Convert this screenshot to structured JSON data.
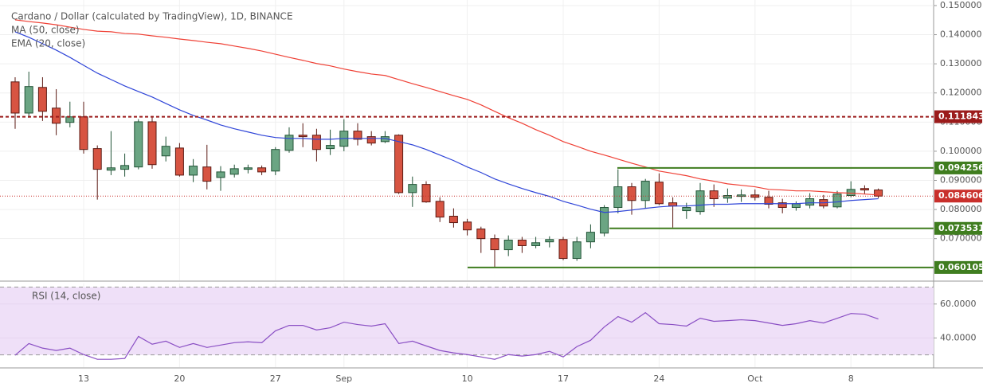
{
  "chart_data": [
    {
      "type": "candlestick",
      "title": "Cardano / Dollar (calculated by TradingView), 1D, BINANCE",
      "categories": [
        null,
        null,
        null,
        null,
        null,
        "13",
        null,
        null,
        null,
        null,
        null,
        null,
        "20",
        null,
        null,
        null,
        null,
        null,
        null,
        "27",
        null,
        null,
        null,
        null,
        "Sep",
        null,
        null,
        null,
        null,
        null,
        null,
        null,
        null,
        "10",
        null,
        null,
        null,
        null,
        null,
        null,
        "17",
        null,
        null,
        null,
        null,
        null,
        null,
        "24",
        null,
        null,
        null,
        null,
        null,
        null,
        "Oct",
        null,
        null,
        null,
        null,
        null,
        null,
        "8",
        null,
        null
      ],
      "open": [
        0.1238,
        0.1131,
        0.1219,
        0.1148,
        0.1099,
        0.1118,
        0.1009,
        0.0935,
        0.0938,
        0.0946,
        0.1101,
        0.0984,
        0.1011,
        0.0918,
        0.0946,
        0.091,
        0.0921,
        0.0938,
        0.0943,
        0.0932,
        0.1003,
        0.1055,
        0.1055,
        0.1009,
        0.1017,
        0.1069,
        0.105,
        0.1033,
        0.1055,
        0.0858,
        0.0886,
        0.0828,
        0.0777,
        0.0757,
        0.0733,
        0.07,
        0.0662,
        0.0695,
        0.0676,
        0.0689,
        0.0697,
        0.0632,
        0.0689,
        0.0719,
        0.0807,
        0.0878,
        0.0831,
        0.0894,
        0.0823,
        0.0796,
        0.0793,
        0.0864,
        0.0839,
        0.0845,
        0.085,
        0.0842,
        0.0823,
        0.0807,
        0.0815,
        0.0834,
        0.0809,
        0.0848,
        0.0872,
        0.0867
      ],
      "high": [
        0.1254,
        0.1273,
        0.1254,
        0.1213,
        0.117,
        0.117,
        0.102,
        0.1069,
        0.0992,
        0.111,
        0.1121,
        0.105,
        0.1028,
        0.0973,
        0.1022,
        0.0949,
        0.0954,
        0.0954,
        0.0951,
        0.1014,
        0.1082,
        0.1096,
        0.1077,
        0.1074,
        0.111,
        0.1096,
        0.1069,
        0.1069,
        0.1058,
        0.0913,
        0.0897,
        0.0842,
        0.0804,
        0.0768,
        0.0741,
        0.0714,
        0.0711,
        0.0706,
        0.0706,
        0.0708,
        0.0706,
        0.0706,
        0.0749,
        0.0815,
        0.0938,
        0.0891,
        0.0905,
        0.0924,
        0.0842,
        0.0823,
        0.0891,
        0.0886,
        0.0872,
        0.0869,
        0.0869,
        0.0864,
        0.0837,
        0.0828,
        0.0856,
        0.085,
        0.0864,
        0.0897,
        0.0883,
        0.0872
      ],
      "low": [
        0.1077,
        0.1115,
        0.1104,
        0.1055,
        0.1082,
        0.0992,
        0.0834,
        0.0918,
        0.0913,
        0.0938,
        0.094,
        0.0965,
        0.0913,
        0.0894,
        0.0869,
        0.0864,
        0.091,
        0.0924,
        0.0918,
        0.0918,
        0.0995,
        0.1014,
        0.0965,
        0.0987,
        0.1,
        0.102,
        0.102,
        0.1028,
        0.0853,
        0.0809,
        0.0823,
        0.0757,
        0.0738,
        0.0711,
        0.0651,
        0.0601,
        0.064,
        0.0651,
        0.0667,
        0.067,
        0.0626,
        0.0624,
        0.0667,
        0.0708,
        0.0787,
        0.0782,
        0.0804,
        0.0815,
        0.0738,
        0.0768,
        0.0782,
        0.0809,
        0.0823,
        0.0826,
        0.0831,
        0.0804,
        0.0787,
        0.0796,
        0.0804,
        0.0804,
        0.0804,
        0.0842,
        0.0853,
        0.0839
      ],
      "close": [
        0.1131,
        0.1222,
        0.1137,
        0.1096,
        0.1118,
        0.1006,
        0.0938,
        0.0943,
        0.0951,
        0.1101,
        0.0954,
        0.1017,
        0.0918,
        0.0949,
        0.0897,
        0.0929,
        0.094,
        0.0943,
        0.0929,
        0.1006,
        0.1055,
        0.105,
        0.1006,
        0.102,
        0.1069,
        0.1041,
        0.1028,
        0.105,
        0.0858,
        0.0886,
        0.0826,
        0.0774,
        0.0755,
        0.073,
        0.07,
        0.0662,
        0.0695,
        0.0676,
        0.0686,
        0.0697,
        0.0632,
        0.0689,
        0.0722,
        0.0807,
        0.0878,
        0.0831,
        0.0897,
        0.082,
        0.0812,
        0.0807,
        0.0864,
        0.0837,
        0.0848,
        0.085,
        0.0842,
        0.0818,
        0.0807,
        0.082,
        0.0837,
        0.0812,
        0.0853,
        0.0869,
        0.0867,
        0.0846
      ],
      "up_color": "#6ba583",
      "up_border": "#225437",
      "down_color": "#d75442",
      "down_border": "#5b1a13",
      "series": [
        {
          "name": "MA (50, close)",
          "color": "#ef4035",
          "values": [
            0.1451,
            0.1445,
            0.144,
            0.1434,
            0.1426,
            0.1418,
            0.1412,
            0.141,
            0.1404,
            0.1402,
            0.1396,
            0.1391,
            0.1385,
            0.138,
            0.1374,
            0.1369,
            0.1361,
            0.1353,
            0.1344,
            0.1333,
            0.1322,
            0.1312,
            0.1301,
            0.1293,
            0.1282,
            0.1273,
            0.1265,
            0.126,
            0.1246,
            0.1232,
            0.1219,
            0.1205,
            0.1191,
            0.1178,
            0.1159,
            0.1137,
            0.1115,
            0.1096,
            0.1074,
            0.1055,
            0.1033,
            0.1017,
            0.1,
            0.0987,
            0.0973,
            0.0959,
            0.0946,
            0.0932,
            0.0924,
            0.0916,
            0.0905,
            0.0897,
            0.0888,
            0.0883,
            0.0878,
            0.0869,
            0.0867,
            0.0864,
            0.0864,
            0.0861,
            0.0858,
            0.0856,
            0.0853,
            0.085
          ]
        },
        {
          "name": "EMA (20, close)",
          "color": "#2f45d8",
          "values": [
            0.141,
            0.1391,
            0.1369,
            0.1347,
            0.1322,
            0.1295,
            0.1268,
            0.1246,
            0.1224,
            0.1205,
            0.1186,
            0.1164,
            0.1142,
            0.1123,
            0.1107,
            0.109,
            0.1077,
            0.1066,
            0.1055,
            0.1047,
            0.1044,
            0.1044,
            0.1041,
            0.1041,
            0.1044,
            0.1044,
            0.1044,
            0.1044,
            0.1033,
            0.1022,
            0.1006,
            0.0987,
            0.0968,
            0.0946,
            0.0927,
            0.0905,
            0.0888,
            0.0872,
            0.0858,
            0.0845,
            0.0828,
            0.0815,
            0.0801,
            0.079,
            0.0793,
            0.0798,
            0.0804,
            0.0809,
            0.0812,
            0.0812,
            0.0815,
            0.0818,
            0.0818,
            0.082,
            0.082,
            0.082,
            0.082,
            0.082,
            0.0823,
            0.0823,
            0.0826,
            0.0831,
            0.0834,
            0.0837
          ]
        }
      ],
      "ylim": [
        0.0557,
        0.1519
      ],
      "yticks": [
        {
          "value": 0.07,
          "label": "0.070000"
        },
        {
          "value": 0.08,
          "label": "0.080000"
        },
        {
          "value": 0.09,
          "label": "0.090000"
        },
        {
          "value": 0.1,
          "label": "0.100000"
        },
        {
          "value": 0.11,
          "label": "0.110000"
        },
        {
          "value": 0.12,
          "label": "0.120000"
        },
        {
          "value": 0.13,
          "label": "0.130000"
        },
        {
          "value": 0.14,
          "label": "0.140000"
        },
        {
          "value": 0.15,
          "label": "0.150000"
        }
      ],
      "grid": true,
      "levels": [
        {
          "value": 0.111843,
          "color": "#9b1b1b",
          "style": "dashed"
        },
        {
          "value": 0.094256,
          "color": "#3f7d1f",
          "style": "solid"
        },
        {
          "value": 0.084606,
          "color": "#c9302c",
          "style": "dotted"
        },
        {
          "value": 0.073531,
          "color": "#3f7d1f",
          "style": "solid"
        },
        {
          "value": 0.060105,
          "color": "#3f7d1f",
          "style": "solid"
        }
      ]
    },
    {
      "type": "line",
      "series": [
        {
          "name": "RSI (14, close)",
          "color": "#8a4fc4",
          "values": [
            29.8,
            36.7,
            34.0,
            32.6,
            34.0,
            30.2,
            27.4,
            27.4,
            27.9,
            40.9,
            36.3,
            38.1,
            34.4,
            36.7,
            34.4,
            35.8,
            37.2,
            37.7,
            37.2,
            44.2,
            47.4,
            47.4,
            44.7,
            46.0,
            49.3,
            47.9,
            47.0,
            48.4,
            36.7,
            38.1,
            35.3,
            32.6,
            31.2,
            30.2,
            28.8,
            27.4,
            30.2,
            29.3,
            30.2,
            32.1,
            28.8,
            34.9,
            38.6,
            46.5,
            52.6,
            49.3,
            54.9,
            48.4,
            47.9,
            47.0,
            51.6,
            49.8,
            50.2,
            50.7,
            50.2,
            48.8,
            47.4,
            48.4,
            50.2,
            48.8,
            51.6,
            54.4,
            54.0,
            51.2
          ]
        }
      ],
      "ylim": [
        22.8,
        72.1
      ],
      "yticks": [
        {
          "value": 40,
          "label": "40.0000"
        },
        {
          "value": 60,
          "label": "60.0000"
        }
      ],
      "bands": [
        30,
        70
      ],
      "band_color": "#efe0f8",
      "grid": true
    }
  ]
}
